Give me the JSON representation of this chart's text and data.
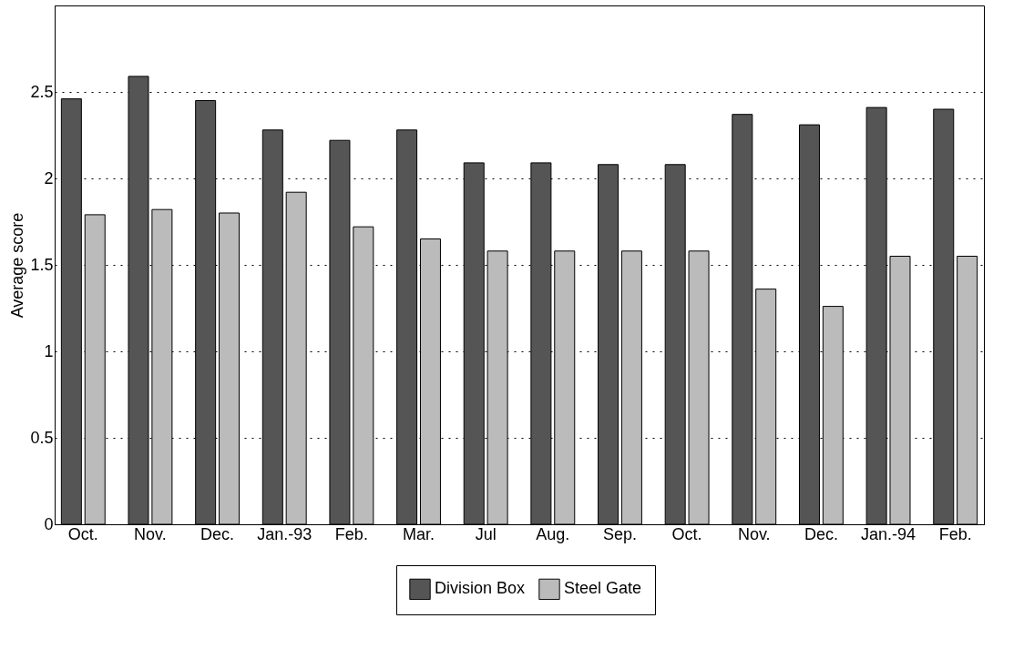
{
  "chart_data": {
    "type": "bar",
    "ylabel": "Average score",
    "categories": [
      "Oct.",
      "Nov.",
      "Dec.",
      "Jan.-93",
      "Feb.",
      "Mar.",
      "Jul",
      "Aug.",
      "Sep.",
      "Oct.",
      "Nov.",
      "Dec.",
      "Jan.-94",
      "Feb."
    ],
    "series": [
      {
        "name": "Division Box",
        "color": "#555555",
        "values": [
          2.46,
          2.59,
          2.45,
          2.28,
          2.22,
          2.28,
          2.09,
          2.09,
          2.08,
          2.08,
          2.37,
          2.31,
          2.41,
          2.4
        ]
      },
      {
        "name": "Steel Gate",
        "color": "#bbbbbb",
        "values": [
          1.79,
          1.82,
          1.8,
          1.92,
          1.72,
          1.65,
          1.58,
          1.58,
          1.58,
          1.58,
          1.36,
          1.26,
          1.55,
          1.55
        ]
      }
    ],
    "ylim": [
      0,
      3
    ],
    "yticks": [
      0,
      0.5,
      1,
      1.5,
      2,
      2.5
    ],
    "grid": "y",
    "legend": "bottom"
  }
}
